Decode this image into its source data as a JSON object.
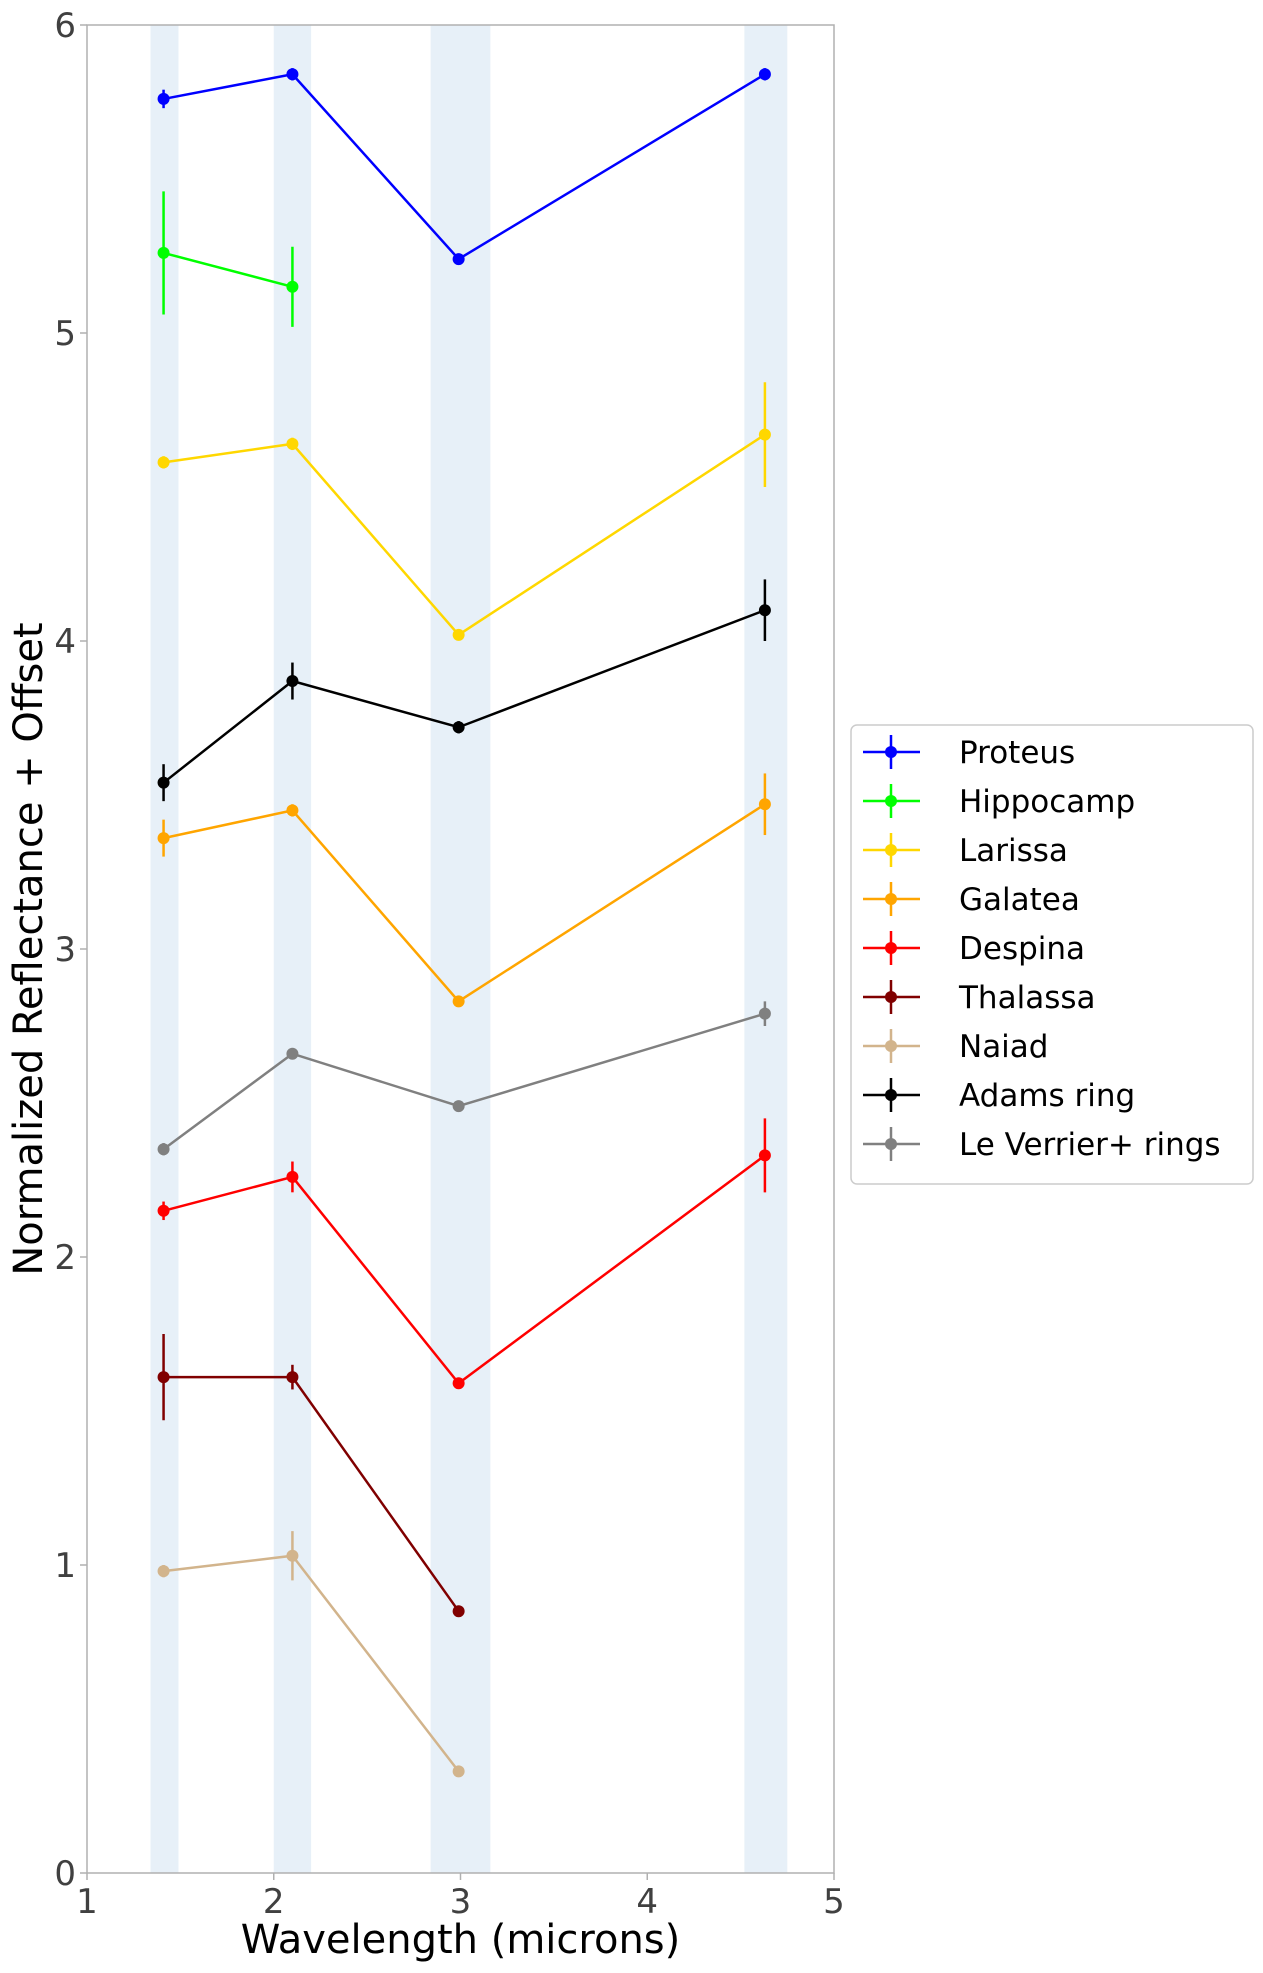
{
  "chart_data": {
    "type": "line",
    "title": "",
    "xlabel": "Wavelength (microns)",
    "ylabel": "Normalized Reflectance + Offset",
    "xlim": [
      1,
      5
    ],
    "ylim": [
      0,
      6
    ],
    "xticks": [
      1,
      2,
      3,
      4,
      5
    ],
    "yticks": [
      0,
      1,
      2,
      3,
      4,
      5,
      6
    ],
    "grid": false,
    "legend_position": "right",
    "bands": [
      [
        1.34,
        1.49
      ],
      [
        2.0,
        2.2
      ],
      [
        2.84,
        3.16
      ],
      [
        4.52,
        4.75
      ]
    ],
    "series": [
      {
        "name": "Proteus",
        "color": "#0000ff",
        "points": [
          {
            "x": 1.41,
            "y": 5.76,
            "err": 0.03
          },
          {
            "x": 2.1,
            "y": 5.84,
            "err": 0.02
          },
          {
            "x": 2.99,
            "y": 5.24,
            "err": 0.01
          },
          {
            "x": 4.63,
            "y": 5.84,
            "err": 0.02
          }
        ]
      },
      {
        "name": "Hippocamp",
        "color": "#00ff00",
        "points": [
          {
            "x": 1.41,
            "y": 5.26,
            "err": 0.2
          },
          {
            "x": 2.1,
            "y": 5.15,
            "err": 0.13
          }
        ]
      },
      {
        "name": "Larissa",
        "color": "#ffd700",
        "points": [
          {
            "x": 1.41,
            "y": 4.58,
            "err": 0.02
          },
          {
            "x": 2.1,
            "y": 4.64,
            "err": 0.02
          },
          {
            "x": 2.99,
            "y": 4.02,
            "err": 0.01
          },
          {
            "x": 4.63,
            "y": 4.67,
            "err": 0.17
          }
        ]
      },
      {
        "name": "Galatea",
        "color": "#ffa500",
        "points": [
          {
            "x": 1.41,
            "y": 3.36,
            "err": 0.06
          },
          {
            "x": 2.1,
            "y": 3.45,
            "err": 0.02
          },
          {
            "x": 2.99,
            "y": 2.83,
            "err": 0.01
          },
          {
            "x": 4.63,
            "y": 3.47,
            "err": 0.1
          }
        ]
      },
      {
        "name": "Despina",
        "color": "#ff0000",
        "points": [
          {
            "x": 1.41,
            "y": 2.15,
            "err": 0.03
          },
          {
            "x": 2.1,
            "y": 2.26,
            "err": 0.05
          },
          {
            "x": 2.99,
            "y": 1.59,
            "err": 0.01
          },
          {
            "x": 4.63,
            "y": 2.33,
            "err": 0.12
          }
        ]
      },
      {
        "name": "Thalassa",
        "color": "#800000",
        "points": [
          {
            "x": 1.41,
            "y": 1.61,
            "err": 0.14
          },
          {
            "x": 2.1,
            "y": 1.61,
            "err": 0.04
          },
          {
            "x": 2.99,
            "y": 0.85,
            "err": 0.01
          }
        ]
      },
      {
        "name": "Naiad",
        "color": "#d2b48c",
        "points": [
          {
            "x": 1.41,
            "y": 0.98,
            "err": 0.02
          },
          {
            "x": 2.1,
            "y": 1.03,
            "err": 0.08
          },
          {
            "x": 2.99,
            "y": 0.33,
            "err": 0.01
          }
        ]
      },
      {
        "name": "Adams ring",
        "color": "#000000",
        "points": [
          {
            "x": 1.41,
            "y": 3.54,
            "err": 0.06
          },
          {
            "x": 2.1,
            "y": 3.87,
            "err": 0.06
          },
          {
            "x": 2.99,
            "y": 3.72,
            "err": 0.02
          },
          {
            "x": 4.63,
            "y": 4.1,
            "err": 0.1
          }
        ]
      },
      {
        "name": "Le Verrier+ rings",
        "color": "#808080",
        "points": [
          {
            "x": 1.41,
            "y": 2.35,
            "err": 0.02
          },
          {
            "x": 2.1,
            "y": 2.66,
            "err": 0.01
          },
          {
            "x": 2.99,
            "y": 2.49,
            "err": 0.01
          },
          {
            "x": 4.63,
            "y": 2.79,
            "err": 0.04
          }
        ]
      }
    ]
  },
  "colors": {
    "band": "#e7f0f8",
    "frame": "#b0b0b0",
    "tick_text": "#404040",
    "legend_border": "#cccccc"
  }
}
